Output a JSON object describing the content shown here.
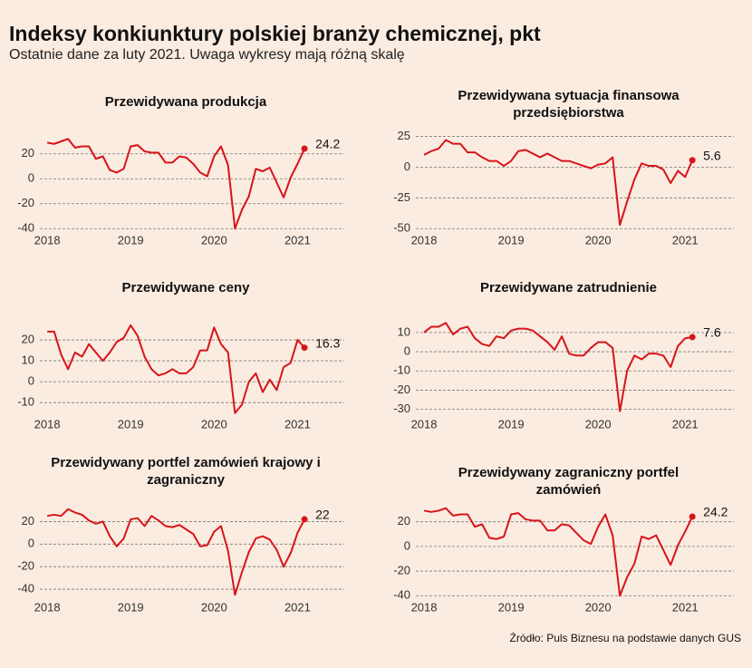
{
  "title": "Indeksy konkiunktury polskiej branży chemicznej, pkt",
  "subtitle": "Ostatnie dane za luty 2021. Uwaga wykresy mają różną skalę",
  "source": "Źródło: Puls Biznesu na podstawie danych GUS",
  "chart_data": [
    {
      "type": "line",
      "title": "Przewidywana produkcja",
      "color": "#d7141a",
      "grid": true,
      "x": [
        2018,
        2018.083,
        2018.167,
        2018.25,
        2018.333,
        2018.417,
        2018.5,
        2018.583,
        2018.667,
        2018.75,
        2018.833,
        2018.917,
        2019,
        2019.083,
        2019.167,
        2019.25,
        2019.333,
        2019.417,
        2019.5,
        2019.583,
        2019.667,
        2019.75,
        2019.833,
        2019.917,
        2020,
        2020.083,
        2020.167,
        2020.25,
        2020.333,
        2020.417,
        2020.5,
        2020.583,
        2020.667,
        2020.75,
        2020.833,
        2020.917,
        2021,
        2021.083
      ],
      "values": [
        29,
        28,
        30,
        32,
        25,
        26,
        26,
        16,
        18,
        7,
        5,
        8,
        26,
        27,
        22,
        21,
        21,
        13,
        13,
        18,
        17,
        12,
        5,
        2,
        18,
        26,
        11,
        -40,
        -25,
        -14,
        8,
        6,
        9,
        -3,
        -15,
        1,
        12,
        24.2
      ],
      "xlim": [
        2017.76,
        2021.56
      ],
      "xticks": [
        2018,
        2019,
        2020,
        2021
      ],
      "ylim": [
        -42,
        38
      ],
      "yticks": [
        -40,
        -20,
        0,
        20
      ]
    },
    {
      "type": "line",
      "title": "Przewidywana sytuacja finansowa przedsiębiorstwa",
      "color": "#d7141a",
      "grid": true,
      "x": [
        2018,
        2018.083,
        2018.167,
        2018.25,
        2018.333,
        2018.417,
        2018.5,
        2018.583,
        2018.667,
        2018.75,
        2018.833,
        2018.917,
        2019,
        2019.083,
        2019.167,
        2019.25,
        2019.333,
        2019.417,
        2019.5,
        2019.583,
        2019.667,
        2019.75,
        2019.833,
        2019.917,
        2020,
        2020.083,
        2020.167,
        2020.25,
        2020.333,
        2020.417,
        2020.5,
        2020.583,
        2020.667,
        2020.75,
        2020.833,
        2020.917,
        2021,
        2021.083
      ],
      "values": [
        10,
        13,
        15,
        22,
        19,
        19,
        12,
        12,
        8,
        5,
        5,
        1,
        5,
        13,
        14,
        11,
        8,
        11,
        8,
        5,
        5,
        3,
        1,
        -1,
        2,
        3,
        8,
        -47,
        -28,
        -10,
        3,
        1,
        1,
        -2,
        -13,
        -3,
        -8,
        5.6
      ],
      "xlim": [
        2017.76,
        2021.56
      ],
      "xticks": [
        2018,
        2019,
        2020,
        2021
      ],
      "ylim": [
        -52,
        29
      ],
      "yticks": [
        -50,
        -25,
        0,
        25
      ]
    },
    {
      "type": "line",
      "title": "Przewidywane ceny",
      "color": "#d7141a",
      "grid": true,
      "x": [
        2018,
        2018.083,
        2018.167,
        2018.25,
        2018.333,
        2018.417,
        2018.5,
        2018.583,
        2018.667,
        2018.75,
        2018.833,
        2018.917,
        2019,
        2019.083,
        2019.167,
        2019.25,
        2019.333,
        2019.417,
        2019.5,
        2019.583,
        2019.667,
        2019.75,
        2019.833,
        2019.917,
        2020,
        2020.083,
        2020.167,
        2020.25,
        2020.333,
        2020.417,
        2020.5,
        2020.583,
        2020.667,
        2020.75,
        2020.833,
        2020.917,
        2021,
        2021.083
      ],
      "values": [
        24,
        24,
        13,
        6,
        14,
        12,
        18,
        14,
        10,
        14,
        19,
        21,
        27,
        22,
        12,
        6,
        3,
        4,
        6,
        4,
        4,
        7,
        15,
        15,
        26,
        18,
        14,
        -15,
        -11,
        0,
        4,
        -5,
        1,
        -4,
        7,
        9,
        20,
        16.3
      ],
      "xlim": [
        2017.76,
        2021.56
      ],
      "xticks": [
        2018,
        2019,
        2020,
        2021
      ],
      "ylim": [
        -16,
        30
      ],
      "yticks": [
        -10,
        0,
        10,
        20
      ]
    },
    {
      "type": "line",
      "title": "Przewidywane zatrudnienie",
      "color": "#d7141a",
      "grid": true,
      "x": [
        2018,
        2018.083,
        2018.167,
        2018.25,
        2018.333,
        2018.417,
        2018.5,
        2018.583,
        2018.667,
        2018.75,
        2018.833,
        2018.917,
        2019,
        2019.083,
        2019.167,
        2019.25,
        2019.333,
        2019.417,
        2019.5,
        2019.583,
        2019.667,
        2019.75,
        2019.833,
        2019.917,
        2020,
        2020.083,
        2020.167,
        2020.25,
        2020.333,
        2020.417,
        2020.5,
        2020.583,
        2020.667,
        2020.75,
        2020.833,
        2020.917,
        2021,
        2021.083
      ],
      "values": [
        10,
        13,
        13,
        15,
        9,
        12,
        13,
        7,
        4,
        3,
        8,
        7,
        11,
        12,
        12,
        11,
        8,
        5,
        1,
        8,
        -1,
        -2,
        -2,
        2,
        5,
        5,
        2,
        -31,
        -10,
        -2,
        -4,
        -1,
        -1,
        -2,
        -8,
        3,
        7,
        7.6
      ],
      "xlim": [
        2017.76,
        2021.56
      ],
      "xticks": [
        2018,
        2019,
        2020,
        2021
      ],
      "ylim": [
        -33,
        17
      ],
      "yticks": [
        -30,
        -20,
        -10,
        0,
        10
      ]
    },
    {
      "type": "line",
      "title": "Przewidywany portfel zamówień krajowy i zagraniczny",
      "color": "#d7141a",
      "grid": true,
      "x": [
        2018,
        2018.083,
        2018.167,
        2018.25,
        2018.333,
        2018.417,
        2018.5,
        2018.583,
        2018.667,
        2018.75,
        2018.833,
        2018.917,
        2019,
        2019.083,
        2019.167,
        2019.25,
        2019.333,
        2019.417,
        2019.5,
        2019.583,
        2019.667,
        2019.75,
        2019.833,
        2019.917,
        2020,
        2020.083,
        2020.167,
        2020.25,
        2020.333,
        2020.417,
        2020.5,
        2020.583,
        2020.667,
        2020.75,
        2020.833,
        2020.917,
        2021,
        2021.083
      ],
      "values": [
        25,
        26,
        25,
        31,
        28,
        26,
        21,
        18,
        20,
        7,
        -2,
        5,
        22,
        23,
        16,
        25,
        21,
        16,
        15,
        17,
        13,
        9,
        -2,
        -1,
        11,
        16,
        -6,
        -45,
        -25,
        -7,
        5,
        7,
        4,
        -5,
        -20,
        -8,
        10,
        22
      ],
      "xlim": [
        2017.76,
        2021.56
      ],
      "xticks": [
        2018,
        2019,
        2020,
        2021
      ],
      "ylim": [
        -48,
        34
      ],
      "yticks": [
        -40,
        -20,
        0,
        20
      ]
    },
    {
      "type": "line",
      "title": "Przewidywany zagraniczny portfel zamówień",
      "color": "#d7141a",
      "grid": true,
      "x": [
        2018,
        2018.083,
        2018.167,
        2018.25,
        2018.333,
        2018.417,
        2018.5,
        2018.583,
        2018.667,
        2018.75,
        2018.833,
        2018.917,
        2019,
        2019.083,
        2019.167,
        2019.25,
        2019.333,
        2019.417,
        2019.5,
        2019.583,
        2019.667,
        2019.75,
        2019.833,
        2019.917,
        2020,
        2020.083,
        2020.167,
        2020.25,
        2020.333,
        2020.417,
        2020.5,
        2020.583,
        2020.667,
        2020.75,
        2020.833,
        2020.917,
        2021,
        2021.083
      ],
      "values": [
        29,
        28,
        29,
        31,
        25,
        26,
        26,
        16,
        18,
        7,
        6,
        8,
        26,
        27,
        22,
        21,
        21,
        13,
        13,
        18,
        17,
        11,
        5,
        2,
        16,
        26,
        9,
        -40,
        -25,
        -14,
        8,
        6,
        9,
        -3,
        -15,
        1,
        12,
        24.2
      ],
      "xlim": [
        2017.76,
        2021.56
      ],
      "xticks": [
        2018,
        2019,
        2020,
        2021
      ],
      "ylim": [
        -42,
        33
      ],
      "yticks": [
        -40,
        -20,
        0,
        20
      ]
    }
  ]
}
